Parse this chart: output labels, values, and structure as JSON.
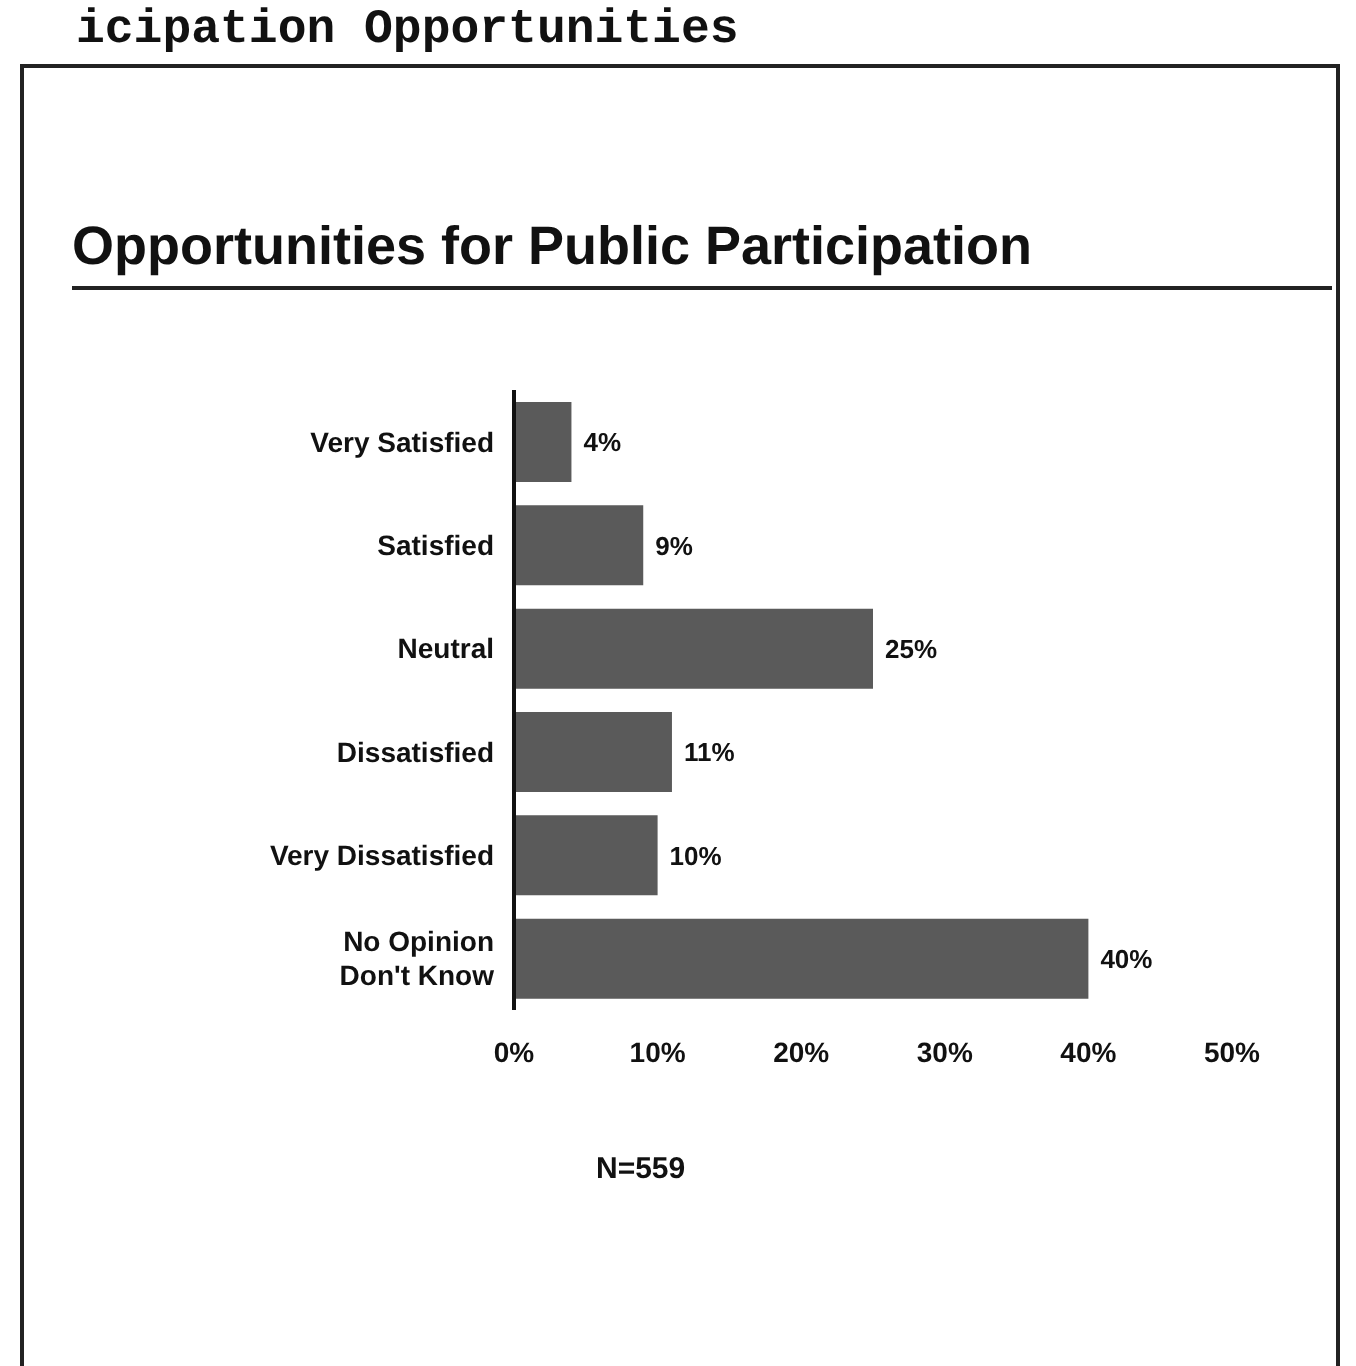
{
  "chart_data": {
    "type": "bar",
    "orientation": "horizontal",
    "title": "Opportunities for Public Participation",
    "categories": [
      "Very Satisfied",
      "Satisfied",
      "Neutral",
      "Dissatisfied",
      "Very Dissatisfied",
      "No Opinion\nDon't Know"
    ],
    "values": [
      4,
      9,
      25,
      11,
      10,
      40
    ],
    "color": "#5a5a5a",
    "value_labels": [
      "4%",
      "9%",
      "25%",
      "11%",
      "10%",
      "40%"
    ],
    "xlim": [
      0,
      50
    ],
    "xticks": [
      {
        "value": 0,
        "label": "0%"
      },
      {
        "value": 10,
        "label": "10%"
      },
      {
        "value": 20,
        "label": "20%"
      },
      {
        "value": 30,
        "label": "30%"
      },
      {
        "value": 40,
        "label": "40%"
      },
      {
        "value": 50,
        "label": "50%"
      }
    ],
    "annotations": [
      "icipation Opportunities",
      "N=559"
    ]
  }
}
